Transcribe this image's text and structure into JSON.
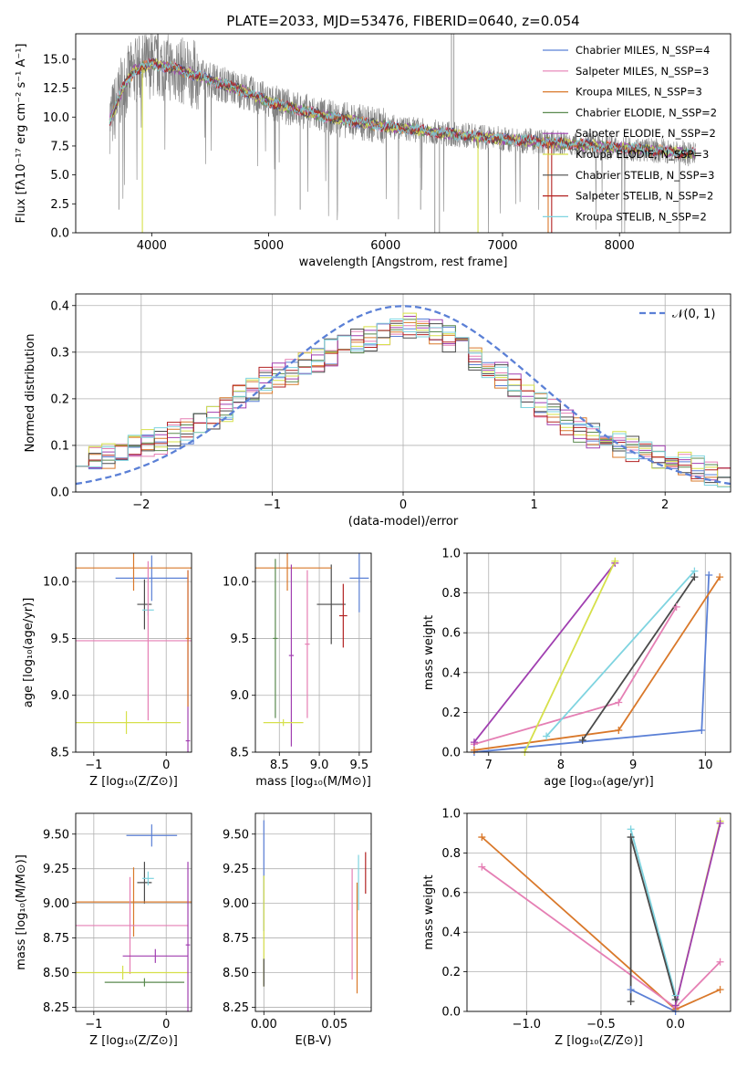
{
  "chart_data": [
    {
      "id": "spectrum",
      "type": "line",
      "title": "PLATE=2033, MJD=53476, FIBERID=0640, z=0.054",
      "xlabel": "wavelength [Angstrom, rest frame]",
      "ylabel": "Flux [fλ10⁻¹⁷ erg cm⁻² s⁻¹ A⁻¹]",
      "xlim": [
        3350,
        8950
      ],
      "ylim": [
        0,
        17.2
      ],
      "xticks": [
        4000,
        5000,
        6000,
        7000,
        8000
      ],
      "yticks": [
        0.0,
        2.5,
        5.0,
        7.5,
        10.0,
        12.5,
        15.0
      ],
      "grid": false,
      "legend_position": "top-right",
      "legend": [
        {
          "name": "Chabrier MILES, N_SSP=4",
          "color": "#5b80d6"
        },
        {
          "name": "Salpeter MILES, N_SSP=3",
          "color": "#e57fb4"
        },
        {
          "name": "Kroupa MILES, N_SSP=3",
          "color": "#d9782a"
        },
        {
          "name": "Chabrier ELODIE, N_SSP=2",
          "color": "#5a8a4f"
        },
        {
          "name": "Salpeter ELODIE, N_SSP=2",
          "color": "#a03fb0"
        },
        {
          "name": "Kroupa ELODIE, N_SSP=3",
          "color": "#d6e04a"
        },
        {
          "name": "Chabrier STELIB, N_SSP=3",
          "color": "#4a4a4a"
        },
        {
          "name": "Salpeter STELIB, N_SSP=2",
          "color": "#b22222"
        },
        {
          "name": "Kroupa STELIB, N_SSP=2",
          "color": "#7fd4e0"
        }
      ],
      "data_color": "#808080",
      "continuum": {
        "x": [
          3650,
          3750,
          3850,
          4000,
          4200,
          4500,
          4800,
          5000,
          5500,
          6000,
          6500,
          7000,
          7400,
          7800,
          8200,
          8650
        ],
        "y": [
          9.8,
          12.5,
          14.0,
          14.6,
          14.2,
          13.2,
          12.2,
          11.3,
          10.0,
          9.2,
          8.6,
          8.1,
          7.8,
          7.5,
          7.2,
          6.8
        ]
      }
    },
    {
      "id": "residuals",
      "type": "step",
      "xlabel": "(data-model)/error",
      "ylabel": "Normed distribution",
      "xlim": [
        -2.5,
        2.5
      ],
      "ylim": [
        0,
        0.425
      ],
      "xticks": [
        -2,
        -1,
        0,
        1,
        2
      ],
      "yticks": [
        0.0,
        0.1,
        0.2,
        0.3,
        0.4
      ],
      "grid": true,
      "reference_label": "𝒩(0, 1)",
      "reference_color": "#5b80d6",
      "bins": [
        -2.5,
        2.5,
        50
      ],
      "histogram": [
        0.085,
        0.075,
        0.08,
        0.09,
        0.095,
        0.105,
        0.11,
        0.12,
        0.13,
        0.14,
        0.16,
        0.18,
        0.2,
        0.22,
        0.24,
        0.25,
        0.26,
        0.27,
        0.285,
        0.3,
        0.31,
        0.32,
        0.33,
        0.34,
        0.35,
        0.36,
        0.35,
        0.34,
        0.33,
        0.31,
        0.29,
        0.27,
        0.25,
        0.23,
        0.21,
        0.19,
        0.17,
        0.15,
        0.13,
        0.12,
        0.11,
        0.1,
        0.09,
        0.08,
        0.07,
        0.065,
        0.06,
        0.05,
        0.04,
        0.03
      ]
    },
    {
      "id": "age-vs-Z",
      "type": "errorbar",
      "xlabel": "Z [log₁₀(Z/Z⊙)]",
      "ylabel": "age  [log₁₀(age/yr)]",
      "xlim": [
        -1.25,
        0.35
      ],
      "ylim": [
        8.5,
        10.25
      ],
      "xticks": [
        -1,
        0
      ],
      "yticks": [
        8.5,
        9.0,
        9.5,
        10.0
      ],
      "grid": true,
      "points": [
        {
          "x": -0.3,
          "y": 9.8,
          "xerr": 0.1,
          "yerr": 0.22,
          "color": "#4a4a4a"
        },
        {
          "x": -0.25,
          "y": 9.75,
          "xerr": 0.08,
          "yerr": 0.05,
          "color": "#7fd4e0"
        },
        {
          "x": -0.2,
          "y": 10.03,
          "xerr": 0.5,
          "yerr": 0.2,
          "color": "#5b80d6"
        },
        {
          "x": -0.45,
          "y": 10.12,
          "xerr": 0.85,
          "yerr": 0.2,
          "color": "#d9782a"
        },
        {
          "x": -0.25,
          "y": 9.48,
          "xerr": 1.1,
          "yerr": 0.7,
          "color": "#e57fb4"
        },
        {
          "x": -0.55,
          "y": 8.76,
          "xerr": 0.75,
          "yerr": 0.1,
          "color": "#d6e04a"
        },
        {
          "x": 0.3,
          "y": 8.6,
          "xerr": 0.03,
          "yerr": 1.5,
          "color": "#a03fb0"
        },
        {
          "x": 0.3,
          "y": 9.5,
          "xerr": 0.03,
          "yerr": 0.6,
          "color": "#d9782a"
        }
      ]
    },
    {
      "id": "age-vs-mass",
      "type": "errorbar",
      "xlabel": "mass [log₁₀(M/M⊙)]",
      "ylabel": "",
      "xlim": [
        8.2,
        9.65
      ],
      "ylim": [
        8.5,
        10.25
      ],
      "xticks": [
        8.5,
        9.0,
        9.5
      ],
      "yticks": [
        8.5,
        9.0,
        9.5,
        10.0
      ],
      "grid": true,
      "points": [
        {
          "x": 9.15,
          "y": 9.8,
          "xerr": 0.18,
          "yerr": 0.35,
          "color": "#4a4a4a"
        },
        {
          "x": 9.3,
          "y": 9.7,
          "xerr": 0.05,
          "yerr": 0.28,
          "color": "#b22222"
        },
        {
          "x": 9.5,
          "y": 10.03,
          "xerr": 0.12,
          "yerr": 0.3,
          "color": "#5b80d6"
        },
        {
          "x": 8.6,
          "y": 10.12,
          "xerr": 0.55,
          "yerr": 0.2,
          "color": "#d9782a"
        },
        {
          "x": 8.45,
          "y": 9.5,
          "xerr": 0.03,
          "yerr": 0.7,
          "color": "#5a8a4f"
        },
        {
          "x": 8.65,
          "y": 9.35,
          "xerr": 0.03,
          "yerr": 0.8,
          "color": "#a03fb0"
        },
        {
          "x": 8.85,
          "y": 9.45,
          "xerr": 0.03,
          "yerr": 0.65,
          "color": "#e57fb4"
        },
        {
          "x": 8.55,
          "y": 8.76,
          "xerr": 0.25,
          "yerr": 0.03,
          "color": "#d6e04a"
        }
      ]
    },
    {
      "id": "massweight-vs-age",
      "type": "line",
      "xlabel": "age  [log₁₀(age/yr)]",
      "ylabel": "mass weight",
      "xlim": [
        6.7,
        10.35
      ],
      "ylim": [
        0,
        1.0
      ],
      "xticks": [
        7,
        8,
        9,
        10
      ],
      "yticks": [
        0.0,
        0.2,
        0.4,
        0.6,
        0.8,
        1.0
      ],
      "grid": true,
      "series": [
        {
          "x": [
            6.8,
            9.95,
            10.05
          ],
          "y": [
            0.0,
            0.11,
            0.89
          ],
          "color": "#5b80d6"
        },
        {
          "x": [
            6.8,
            8.8,
            9.6
          ],
          "y": [
            0.04,
            0.25,
            0.73
          ],
          "color": "#e57fb4"
        },
        {
          "x": [
            6.8,
            8.8,
            10.2
          ],
          "y": [
            0.01,
            0.11,
            0.88
          ],
          "color": "#d9782a"
        },
        {
          "x": [
            6.8,
            8.75
          ],
          "y": [
            0.05,
            0.95
          ],
          "color": "#a03fb0"
        },
        {
          "x": [
            7.5,
            8.75
          ],
          "y": [
            0.0,
            0.96
          ],
          "color": "#d6e04a"
        },
        {
          "x": [
            7.8,
            9.85
          ],
          "y": [
            0.08,
            0.91
          ],
          "color": "#7fd4e0"
        },
        {
          "x": [
            8.3,
            9.85
          ],
          "y": [
            0.06,
            0.88
          ],
          "color": "#4a4a4a"
        }
      ]
    },
    {
      "id": "mass-vs-Z",
      "type": "errorbar",
      "xlabel": "Z [log₁₀(Z/Z⊙)]",
      "ylabel": "mass [log₁₀(M/M⊙)]",
      "xlim": [
        -1.25,
        0.35
      ],
      "ylim": [
        8.22,
        9.65
      ],
      "xticks": [
        -1,
        0
      ],
      "yticks": [
        8.25,
        8.5,
        8.75,
        9.0,
        9.25,
        9.5
      ],
      "grid": true,
      "points": [
        {
          "x": -0.3,
          "y": 9.15,
          "xerr": 0.1,
          "yerr": 0.15,
          "color": "#4a4a4a"
        },
        {
          "x": -0.2,
          "y": 9.49,
          "xerr": 0.35,
          "yerr": 0.08,
          "color": "#5b80d6"
        },
        {
          "x": -0.25,
          "y": 9.18,
          "xerr": 0.08,
          "yerr": 0.05,
          "color": "#7fd4e0"
        },
        {
          "x": -0.45,
          "y": 9.01,
          "xerr": 0.85,
          "yerr": 0.25,
          "color": "#d9782a"
        },
        {
          "x": -0.5,
          "y": 8.84,
          "xerr": 0.8,
          "yerr": 0.35,
          "color": "#e57fb4"
        },
        {
          "x": -0.15,
          "y": 8.62,
          "xerr": 0.45,
          "yerr": 0.05,
          "color": "#a03fb0"
        },
        {
          "x": -0.6,
          "y": 8.5,
          "xerr": 0.9,
          "yerr": 0.05,
          "color": "#d6e04a"
        },
        {
          "x": -0.3,
          "y": 8.43,
          "xerr": 0.55,
          "yerr": 0.03,
          "color": "#5a8a4f"
        },
        {
          "x": 0.3,
          "y": 8.7,
          "xerr": 0.03,
          "yerr": 0.6,
          "color": "#a03fb0"
        }
      ]
    },
    {
      "id": "mass-vs-EBV",
      "type": "errorbar",
      "xlabel": "E(B-V)",
      "ylabel": "",
      "xlim": [
        -0.006,
        0.076
      ],
      "ylim": [
        8.22,
        9.65
      ],
      "xticks": [
        0.0,
        0.05
      ],
      "yticks": [
        8.25,
        8.5,
        8.75,
        9.0,
        9.25,
        9.5
      ],
      "grid": true,
      "points": [
        {
          "x": 0.0,
          "y": 9.2,
          "xerr": 0.0,
          "yerr": 0.4,
          "color": "#5b80d6"
        },
        {
          "x": 0.0,
          "y": 8.8,
          "xerr": 0.0,
          "yerr": 0.4,
          "color": "#d6e04a"
        },
        {
          "x": 0.0,
          "y": 8.5,
          "xerr": 0.0,
          "yerr": 0.1,
          "color": "#4a4a4a"
        },
        {
          "x": 0.0625,
          "y": 8.85,
          "xerr": 0.0,
          "yerr": 0.4,
          "color": "#e57fb4"
        },
        {
          "x": 0.066,
          "y": 8.75,
          "xerr": 0.0,
          "yerr": 0.4,
          "color": "#d9782a"
        },
        {
          "x": 0.067,
          "y": 9.15,
          "xerr": 0.0,
          "yerr": 0.2,
          "color": "#7fd4e0"
        },
        {
          "x": 0.072,
          "y": 9.22,
          "xerr": 0.0,
          "yerr": 0.15,
          "color": "#b22222"
        }
      ]
    },
    {
      "id": "massweight-vs-Z",
      "type": "line",
      "xlabel": "Z [log₁₀(Z/Z⊙)]",
      "ylabel": "mass weight",
      "xlim": [
        -1.4,
        0.37
      ],
      "ylim": [
        0,
        1.0
      ],
      "xticks": [
        -1.0,
        -0.5,
        0.0
      ],
      "yticks": [
        0.0,
        0.2,
        0.4,
        0.6,
        0.8,
        1.0
      ],
      "grid": true,
      "series": [
        {
          "x": [
            -1.3,
            0.0,
            0.3
          ],
          "y": [
            0.88,
            0.01,
            0.11
          ],
          "color": "#d9782a"
        },
        {
          "x": [
            -1.3,
            0.0,
            0.3
          ],
          "y": [
            0.73,
            0.02,
            0.25
          ],
          "color": "#e57fb4"
        },
        {
          "x": [
            -0.3,
            0.0
          ],
          "y": [
            0.11,
            0.0
          ],
          "color": "#5b80d6"
        },
        {
          "x": [
            -0.3,
            0.0
          ],
          "y": [
            0.92,
            0.08
          ],
          "color": "#7fd4e0"
        },
        {
          "x": [
            -0.3,
            -0.3,
            0.0
          ],
          "y": [
            0.05,
            0.88,
            0.06
          ],
          "color": "#4a4a4a"
        },
        {
          "x": [
            0.0,
            0.3
          ],
          "y": [
            0.03,
            0.96
          ],
          "color": "#d6e04a"
        },
        {
          "x": [
            0.0,
            0.3
          ],
          "y": [
            0.03,
            0.95
          ],
          "color": "#a03fb0"
        }
      ]
    }
  ]
}
